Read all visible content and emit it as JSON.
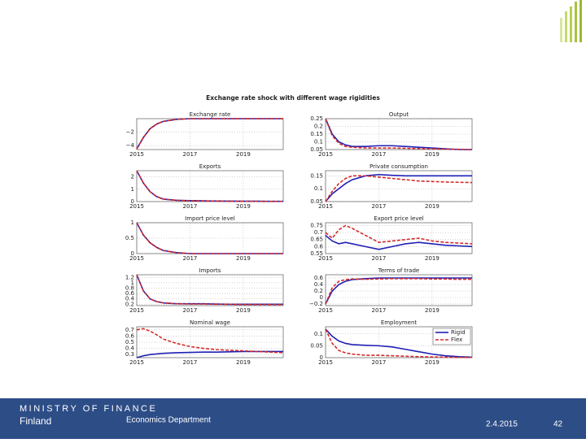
{
  "title": "Exchange rate shock with different wage rigidities",
  "footer": {
    "organization": "MINISTRY OF FINANCE",
    "country": "Finland",
    "department": "Economics Department",
    "date": "2.4.2015",
    "page": "42"
  },
  "chart_data": [
    {
      "type": "line",
      "title": "Exchange rate",
      "x": [
        2015,
        2015.25,
        2015.5,
        2015.75,
        2016,
        2016.5,
        2017,
        2017.5,
        2018,
        2018.5,
        2019,
        2019.5,
        2020,
        2020.5
      ],
      "xlim": [
        2015,
        2020.5
      ],
      "xticks": [
        2015,
        2017,
        2019
      ],
      "ylim": [
        -4.6,
        0
      ],
      "yticks": [
        {
          "value": -4,
          "label": "−4"
        },
        {
          "value": -2,
          "label": "−2"
        }
      ],
      "grid": true,
      "series": [
        {
          "name": "Rigid",
          "color": "#1f1fb4",
          "linestyle": "solid",
          "values": [
            -4.5,
            -2.8,
            -1.5,
            -0.8,
            -0.4,
            -0.1,
            0,
            0,
            0,
            0,
            0,
            0,
            0,
            0
          ]
        },
        {
          "name": "Flex",
          "color": "#d42a2a",
          "linestyle": "dashed",
          "values": [
            -4.5,
            -2.8,
            -1.5,
            -0.8,
            -0.4,
            -0.1,
            0,
            0,
            0,
            0,
            0,
            0,
            0,
            0
          ]
        }
      ]
    },
    {
      "type": "line",
      "title": "Output",
      "x": [
        2015,
        2015.25,
        2015.5,
        2015.75,
        2016,
        2016.5,
        2017,
        2017.5,
        2018,
        2018.5,
        2019,
        2019.5,
        2020,
        2020.5
      ],
      "xlim": [
        2015,
        2020.5
      ],
      "xticks": [
        2015,
        2017,
        2019
      ],
      "ylim": [
        0.05,
        0.25
      ],
      "yticks": [
        0.05,
        0.1,
        0.15,
        0.2,
        0.25
      ],
      "grid": true,
      "series": [
        {
          "name": "Rigid",
          "color": "#1f1fb4",
          "linestyle": "solid",
          "values": [
            0.25,
            0.15,
            0.1,
            0.08,
            0.07,
            0.07,
            0.075,
            0.075,
            0.07,
            0.065,
            0.06,
            0.055,
            0.05,
            0.05
          ]
        },
        {
          "name": "Flex",
          "color": "#d42a2a",
          "linestyle": "dashed",
          "values": [
            0.25,
            0.14,
            0.09,
            0.07,
            0.065,
            0.06,
            0.06,
            0.06,
            0.058,
            0.056,
            0.055,
            0.053,
            0.052,
            0.05
          ]
        }
      ]
    },
    {
      "type": "line",
      "title": "Exports",
      "x": [
        2015,
        2015.25,
        2015.5,
        2015.75,
        2016,
        2016.5,
        2017,
        2017.5,
        2018,
        2018.5,
        2019,
        2019.5,
        2020,
        2020.5
      ],
      "xlim": [
        2015,
        2020.5
      ],
      "xticks": [
        2015,
        2017,
        2019
      ],
      "ylim": [
        0,
        2.5
      ],
      "yticks": [
        0,
        1,
        2
      ],
      "grid": true,
      "series": [
        {
          "name": "Rigid",
          "color": "#1f1fb4",
          "linestyle": "solid",
          "values": [
            2.5,
            1.5,
            0.8,
            0.4,
            0.2,
            0.1,
            0.08,
            0.06,
            0.05,
            0.04,
            0.03,
            0.03,
            0.02,
            0.02
          ]
        },
        {
          "name": "Flex",
          "color": "#d42a2a",
          "linestyle": "dashed",
          "values": [
            2.5,
            1.5,
            0.8,
            0.4,
            0.2,
            0.1,
            0.07,
            0.05,
            0.04,
            0.03,
            0.02,
            0.02,
            0.01,
            0.01
          ]
        }
      ]
    },
    {
      "type": "line",
      "title": "Private consumption",
      "x": [
        2015,
        2015.25,
        2015.5,
        2015.75,
        2016,
        2016.5,
        2017,
        2017.5,
        2018,
        2018.5,
        2019,
        2019.5,
        2020,
        2020.5
      ],
      "xlim": [
        2015,
        2020.5
      ],
      "xticks": [
        2015,
        2017,
        2019
      ],
      "ylim": [
        0.05,
        0.17
      ],
      "yticks": [
        0.05,
        0.1,
        0.15
      ],
      "grid": true,
      "series": [
        {
          "name": "Rigid",
          "color": "#1f1fb4",
          "linestyle": "solid",
          "values": [
            0.05,
            0.08,
            0.1,
            0.12,
            0.135,
            0.15,
            0.155,
            0.152,
            0.15,
            0.15,
            0.15,
            0.15,
            0.15,
            0.15
          ]
        },
        {
          "name": "Flex",
          "color": "#d42a2a",
          "linestyle": "dashed",
          "values": [
            0.05,
            0.09,
            0.12,
            0.14,
            0.15,
            0.15,
            0.145,
            0.14,
            0.135,
            0.13,
            0.128,
            0.126,
            0.125,
            0.124
          ]
        }
      ]
    },
    {
      "type": "line",
      "title": "Import price level",
      "x": [
        2015,
        2015.25,
        2015.5,
        2015.75,
        2016,
        2016.5,
        2017,
        2017.5,
        2018,
        2018.5,
        2019,
        2019.5,
        2020,
        2020.5
      ],
      "xlim": [
        2015,
        2020.5
      ],
      "xticks": [
        2015,
        2017,
        2019
      ],
      "ylim": [
        0,
        1
      ],
      "yticks": [
        0,
        0.5,
        1
      ],
      "grid": true,
      "series": [
        {
          "name": "Rigid",
          "color": "#1f1fb4",
          "linestyle": "solid",
          "values": [
            1,
            0.6,
            0.35,
            0.2,
            0.1,
            0.03,
            0,
            0,
            0,
            0,
            0,
            0,
            0,
            0
          ]
        },
        {
          "name": "Flex",
          "color": "#d42a2a",
          "linestyle": "dashed",
          "values": [
            1,
            0.6,
            0.35,
            0.2,
            0.1,
            0.03,
            0,
            0,
            0,
            0,
            0,
            0,
            0,
            0
          ]
        }
      ]
    },
    {
      "type": "line",
      "title": "Export price level",
      "x": [
        2015,
        2015.25,
        2015.5,
        2015.75,
        2016,
        2016.5,
        2017,
        2017.5,
        2018,
        2018.5,
        2019,
        2019.5,
        2020,
        2020.5
      ],
      "xlim": [
        2015,
        2020.5
      ],
      "xticks": [
        2015,
        2017,
        2019
      ],
      "ylim": [
        0.55,
        0.77
      ],
      "yticks": [
        0.55,
        0.6,
        0.65,
        0.7,
        0.75
      ],
      "grid": true,
      "series": [
        {
          "name": "Rigid",
          "color": "#1f1fb4",
          "linestyle": "solid",
          "values": [
            0.68,
            0.64,
            0.62,
            0.63,
            0.62,
            0.6,
            0.58,
            0.6,
            0.62,
            0.63,
            0.62,
            0.61,
            0.605,
            0.6
          ]
        },
        {
          "name": "Flex",
          "color": "#d42a2a",
          "linestyle": "dashed",
          "values": [
            0.7,
            0.66,
            0.72,
            0.75,
            0.73,
            0.68,
            0.63,
            0.64,
            0.65,
            0.66,
            0.64,
            0.63,
            0.625,
            0.62
          ]
        }
      ]
    },
    {
      "type": "line",
      "title": "Imports",
      "x": [
        2015,
        2015.25,
        2015.5,
        2015.75,
        2016,
        2016.5,
        2017,
        2017.5,
        2018,
        2018.5,
        2019,
        2019.5,
        2020,
        2020.5
      ],
      "xlim": [
        2015,
        2020.5
      ],
      "xticks": [
        2015,
        2017,
        2019
      ],
      "ylim": [
        0.15,
        1.3
      ],
      "yticks": [
        0.2,
        0.4,
        0.6,
        0.8,
        1,
        1.2
      ],
      "grid": true,
      "series": [
        {
          "name": "Rigid",
          "color": "#1f1fb4",
          "linestyle": "solid",
          "values": [
            1.3,
            0.7,
            0.4,
            0.3,
            0.25,
            0.22,
            0.22,
            0.22,
            0.21,
            0.2,
            0.2,
            0.2,
            0.2,
            0.2
          ]
        },
        {
          "name": "Flex",
          "color": "#d42a2a",
          "linestyle": "dashed",
          "values": [
            1.3,
            0.7,
            0.4,
            0.3,
            0.25,
            0.22,
            0.21,
            0.21,
            0.2,
            0.2,
            0.19,
            0.19,
            0.19,
            0.19
          ]
        }
      ]
    },
    {
      "type": "line",
      "title": "Terms of trade",
      "x": [
        2015,
        2015.25,
        2015.5,
        2015.75,
        2016,
        2016.5,
        2017,
        2017.5,
        2018,
        2018.5,
        2019,
        2019.5,
        2020,
        2020.5
      ],
      "xlim": [
        2015,
        2020.5
      ],
      "xticks": [
        2015,
        2017,
        2019
      ],
      "ylim": [
        -0.25,
        0.7
      ],
      "yticks": [
        {
          "value": -0.2,
          "label": "−0.2"
        },
        0,
        0.2,
        0.4,
        0.6
      ],
      "grid": true,
      "series": [
        {
          "name": "Rigid",
          "color": "#1f1fb4",
          "linestyle": "solid",
          "values": [
            -0.2,
            0.2,
            0.4,
            0.5,
            0.55,
            0.58,
            0.6,
            0.6,
            0.6,
            0.6,
            0.6,
            0.6,
            0.6,
            0.6
          ]
        },
        {
          "name": "Flex",
          "color": "#d42a2a",
          "linestyle": "dashed",
          "values": [
            -0.2,
            0.3,
            0.5,
            0.55,
            0.57,
            0.56,
            0.57,
            0.58,
            0.58,
            0.58,
            0.57,
            0.57,
            0.56,
            0.56
          ]
        }
      ]
    },
    {
      "type": "line",
      "title": "Nominal wage",
      "x": [
        2015,
        2015.25,
        2015.5,
        2015.75,
        2016,
        2016.5,
        2017,
        2017.5,
        2018,
        2018.5,
        2019,
        2019.5,
        2020,
        2020.5
      ],
      "xlim": [
        2015,
        2020.5
      ],
      "xticks": [
        2015,
        2017,
        2019
      ],
      "ylim": [
        0.25,
        0.75
      ],
      "yticks": [
        0.3,
        0.4,
        0.5,
        0.6,
        0.7
      ],
      "grid": true,
      "series": [
        {
          "name": "Rigid",
          "color": "#1f1fb4",
          "linestyle": "solid",
          "values": [
            0.25,
            0.28,
            0.3,
            0.31,
            0.32,
            0.33,
            0.335,
            0.34,
            0.34,
            0.345,
            0.35,
            0.35,
            0.35,
            0.35
          ]
        },
        {
          "name": "Flex",
          "color": "#d42a2a",
          "linestyle": "dashed",
          "values": [
            0.7,
            0.72,
            0.68,
            0.62,
            0.55,
            0.48,
            0.43,
            0.4,
            0.38,
            0.37,
            0.36,
            0.35,
            0.34,
            0.33
          ]
        }
      ]
    },
    {
      "type": "line",
      "title": "Employment",
      "x": [
        2015,
        2015.25,
        2015.5,
        2015.75,
        2016,
        2016.5,
        2017,
        2017.5,
        2018,
        2018.5,
        2019,
        2019.5,
        2020,
        2020.5
      ],
      "xlim": [
        2015,
        2020.5
      ],
      "xticks": [
        2015,
        2017,
        2019
      ],
      "ylim": [
        0,
        0.13
      ],
      "yticks": [
        0,
        0.05,
        0.1
      ],
      "grid": true,
      "legend": "upper right",
      "series": [
        {
          "name": "Rigid",
          "color": "#1f1fb4",
          "linestyle": "solid",
          "values": [
            0.12,
            0.09,
            0.07,
            0.06,
            0.055,
            0.052,
            0.05,
            0.045,
            0.035,
            0.025,
            0.015,
            0.008,
            0.004,
            0.002
          ]
        },
        {
          "name": "Flex",
          "color": "#d42a2a",
          "linestyle": "dashed",
          "values": [
            0.12,
            0.06,
            0.03,
            0.02,
            0.015,
            0.01,
            0.01,
            0.008,
            0.006,
            0.004,
            0.003,
            0.002,
            0.001,
            0.001
          ]
        }
      ]
    }
  ]
}
